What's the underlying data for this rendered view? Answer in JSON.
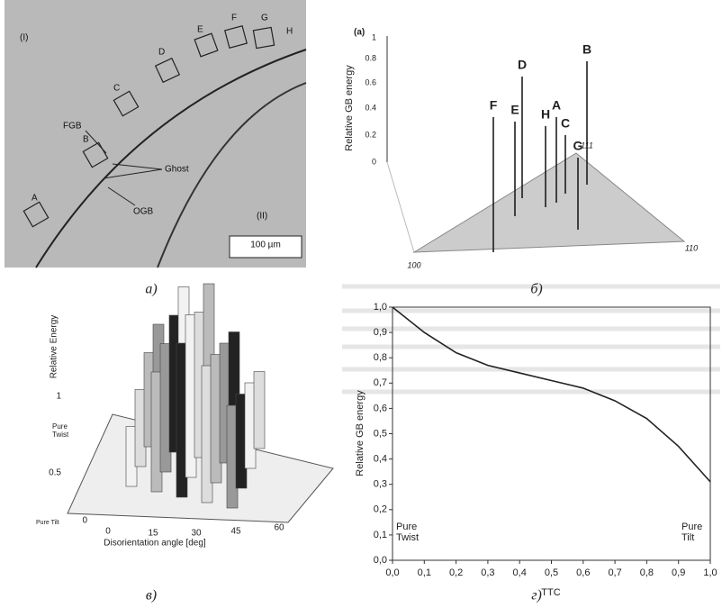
{
  "panel_a": {
    "caption": "а)",
    "regions": [
      "(I)",
      "(II)"
    ],
    "boxes": [
      "A",
      "B",
      "C",
      "D",
      "E",
      "F",
      "G",
      "H"
    ],
    "labels": [
      "FGB",
      "Ghost",
      "OGB"
    ],
    "scale_bar": "100 µm"
  },
  "panel_b": {
    "caption": "б)",
    "tag": "(a)",
    "y_label": "Relative GB energy",
    "y_ticks": [
      "1",
      "0.8",
      "0.6",
      "0.4",
      "0.2",
      "0"
    ],
    "boundaries": [
      "F",
      "E",
      "D",
      "H",
      "A",
      "C",
      "G",
      "B"
    ],
    "corners": [
      "100",
      "110",
      "111"
    ]
  },
  "panel_c": {
    "caption": "в)",
    "y_label": "Relative Energy",
    "y_end_labels": [
      "Pure Twist",
      "Pure Tilt"
    ],
    "y_ticks": [
      "1",
      "0.5",
      "0"
    ],
    "x_ticks": [
      "0",
      "15",
      "30",
      "45",
      "60"
    ],
    "x_label": "Disorientation angle [deg]",
    "bar_heights": [
      0.35,
      0.45,
      0.55,
      0.6,
      0.7,
      0.75,
      0.8,
      0.85,
      0.9,
      0.95,
      0.85,
      0.9,
      0.8,
      0.75,
      0.7,
      0.65,
      0.6,
      0.55,
      0.5,
      0.45
    ]
  },
  "panel_d": {
    "caption": "г)"
  },
  "chart_data": {
    "type": "line",
    "x_label": "TTC",
    "y_label": "Relative GB energy",
    "annotations": [
      "Pure Twist",
      "Pure Tilt"
    ],
    "color": "#222222",
    "x": [
      0,
      0.1,
      0.2,
      0.3,
      0.4,
      0.5,
      0.6,
      0.7,
      0.8,
      0.9,
      1.0
    ],
    "values": [
      1.0,
      0.9,
      0.82,
      0.77,
      0.74,
      0.71,
      0.68,
      0.63,
      0.56,
      0.45,
      0.31
    ],
    "xlim": [
      0,
      1
    ],
    "ylim": [
      0,
      1
    ],
    "xticks": [
      {
        "value": 0,
        "label": "0,0"
      },
      {
        "value": 0.1,
        "label": "0,1"
      },
      {
        "value": 0.2,
        "label": "0,2"
      },
      {
        "value": 0.3,
        "label": "0,3"
      },
      {
        "value": 0.4,
        "label": "0,4"
      },
      {
        "value": 0.5,
        "label": "0,5"
      },
      {
        "value": 0.6,
        "label": "0,6"
      },
      {
        "value": 0.7,
        "label": "0,7"
      },
      {
        "value": 0.8,
        "label": "0,8"
      },
      {
        "value": 0.9,
        "label": "0,9"
      },
      {
        "value": 1.0,
        "label": "1,0"
      }
    ],
    "yticks": [
      {
        "value": 0,
        "label": "0,0"
      },
      {
        "value": 0.1,
        "label": "0,1"
      },
      {
        "value": 0.2,
        "label": "0,2"
      },
      {
        "value": 0.3,
        "label": "0,3"
      },
      {
        "value": 0.4,
        "label": "0,4"
      },
      {
        "value": 0.5,
        "label": "0,5"
      },
      {
        "value": 0.6,
        "label": "0,6"
      },
      {
        "value": 0.7,
        "label": "0,7"
      },
      {
        "value": 0.8,
        "label": "0,8"
      },
      {
        "value": 0.9,
        "label": "0,9"
      },
      {
        "value": 1.0,
        "label": "1,0"
      }
    ]
  }
}
